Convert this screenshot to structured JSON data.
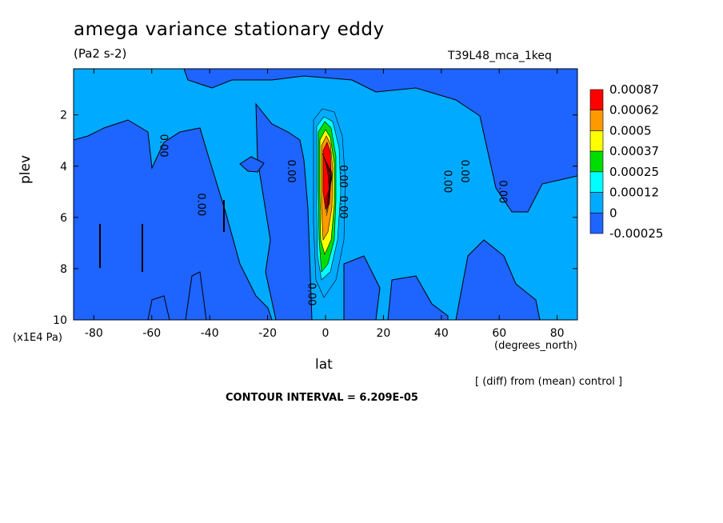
{
  "header": {
    "title": "amega variance stationary eddy",
    "units": "(Pa2 s-2)",
    "run_id": "T39L48_mca_1keq"
  },
  "footer": {
    "diff_note": "[ (diff) from (mean) control ]",
    "contour_interval": "CONTOUR INTERVAL = 6.209E-05"
  },
  "chart_data": {
    "type": "heatmap",
    "title": "amega variance stationary eddy",
    "subtitle": "(Pa2 s-2)",
    "xlabel": "lat",
    "xlabel_units": "(degrees_north)",
    "ylabel": "plev",
    "ylabel_scale": "(x1E4 Pa)",
    "xlim": [
      -87,
      87
    ],
    "ylim": [
      10,
      0.2
    ],
    "x_ticks": [
      {
        "value": -80,
        "label": "-80"
      },
      {
        "value": -60,
        "label": "-60"
      },
      {
        "value": -40,
        "label": "-40"
      },
      {
        "value": -20,
        "label": "-20"
      },
      {
        "value": 0,
        "label": "0"
      },
      {
        "value": 20,
        "label": "20"
      },
      {
        "value": 40,
        "label": "40"
      },
      {
        "value": 60,
        "label": "60"
      },
      {
        "value": 80,
        "label": "80"
      }
    ],
    "y_ticks": [
      {
        "value": 2,
        "label": "2"
      },
      {
        "value": 4,
        "label": "4"
      },
      {
        "value": 6,
        "label": "6"
      },
      {
        "value": 8,
        "label": "8"
      },
      {
        "value": 10,
        "label": "10"
      }
    ],
    "legend": {
      "placement": "right",
      "levels": [
        {
          "label": "0.00087",
          "color": "#ff0000"
        },
        {
          "label": "0.00062",
          "color": "#ff9900"
        },
        {
          "label": "0.0005",
          "color": "#ffff00"
        },
        {
          "label": "0.00037",
          "color": "#00dd00"
        },
        {
          "label": "0.00025",
          "color": "#00ffff"
        },
        {
          "label": "0.00012",
          "color": "#00aaff"
        },
        {
          "label": "0",
          "color": "#1e64ff"
        },
        {
          "label": "-0.00025",
          "color": ""
        }
      ]
    },
    "background_color": "#00aaff",
    "contour_labels": [
      {
        "text": "0.00",
        "lat": -57,
        "plev": 3.2
      },
      {
        "text": "0.00",
        "lat": -44,
        "plev": 5.5
      },
      {
        "text": "0.00",
        "lat": -13,
        "plev": 4.2
      },
      {
        "text": "0.00",
        "lat": -6,
        "plev": 9.0
      },
      {
        "text": "0.00",
        "lat": 41,
        "plev": 4.6
      },
      {
        "text": "0.00",
        "lat": 47,
        "plev": 4.2
      },
      {
        "text": "0.00",
        "lat": 60,
        "plev": 5.0
      },
      {
        "text": "0.00",
        "lat": 5,
        "plev": 5.6
      },
      {
        "text": "0.00",
        "lat": 5,
        "plev": 4.4
      }
    ]
  }
}
